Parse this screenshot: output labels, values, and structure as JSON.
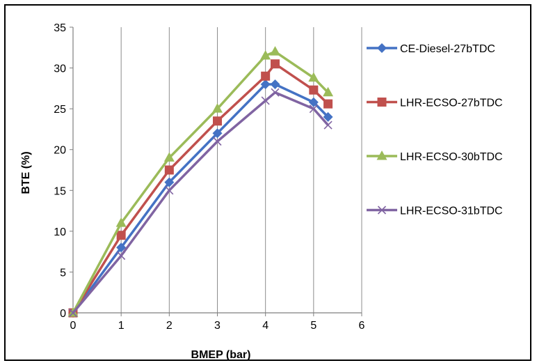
{
  "chart_data": {
    "type": "line",
    "title": "",
    "xlabel": "BMEP (bar)",
    "ylabel": "BTE (%)",
    "xlim": [
      0,
      6
    ],
    "ylim": [
      0,
      35
    ],
    "xticks": [
      0,
      1,
      2,
      3,
      4,
      5,
      6
    ],
    "yticks": [
      0,
      5,
      10,
      15,
      20,
      25,
      30,
      35
    ],
    "grid": "vertical",
    "legend_position": "right",
    "series": [
      {
        "name": "CE-Diesel-27bTDC",
        "color": "#4472C4",
        "marker": "diamond",
        "x": [
          0,
          1,
          2,
          3,
          4,
          4.2,
          5,
          5.3
        ],
        "y": [
          0,
          8,
          16,
          22,
          28,
          28,
          25.8,
          24
        ]
      },
      {
        "name": "LHR-ECSO-27bTDC",
        "color": "#C0504D",
        "marker": "square",
        "x": [
          0,
          1,
          2,
          3,
          4,
          4.2,
          5,
          5.3
        ],
        "y": [
          0,
          9.5,
          17.5,
          23.5,
          29,
          30.5,
          27.3,
          25.6
        ]
      },
      {
        "name": "LHR-ECSO-30bTDC",
        "color": "#9BBB59",
        "marker": "triangle",
        "x": [
          0,
          1,
          2,
          3,
          4,
          4.2,
          5,
          5.3
        ],
        "y": [
          0,
          11,
          19,
          25,
          31.5,
          32,
          28.8,
          27
        ]
      },
      {
        "name": "LHR-ECSO-31bTDC",
        "color": "#8064A2",
        "marker": "x",
        "x": [
          0,
          1,
          2,
          3,
          4,
          4.2,
          5,
          5.3
        ],
        "y": [
          0,
          7,
          15,
          21,
          26,
          27,
          25,
          23
        ]
      }
    ]
  }
}
